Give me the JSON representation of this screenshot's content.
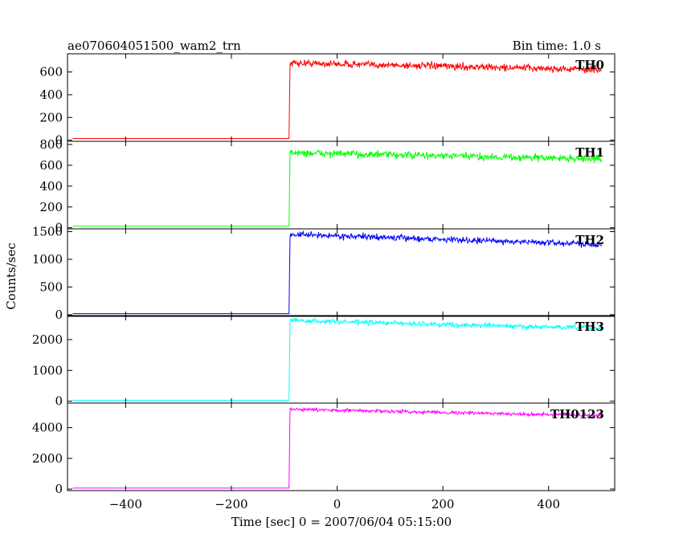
{
  "header": {
    "title_left": "ae070604051500_wam2_trn",
    "title_right": "Bin time: 1.0 s"
  },
  "chart_data": {
    "type": "line",
    "title": "ae070604051500_wam2_trn",
    "subtitle": "Bin time: 1.0 s",
    "xlabel": "Time [sec] 0 = 2007/06/04 05:15:00",
    "ylabel": "Counts/sec",
    "xlim": [
      -510,
      525
    ],
    "xticks": [
      -400,
      -200,
      0,
      200,
      400
    ],
    "grid": false,
    "step_time": -90,
    "x_start": -500,
    "x_end": 500,
    "panels": [
      {
        "name": "TH0",
        "color": "#ff0000",
        "ylim": [
          -10,
          760
        ],
        "yticks": [
          0,
          200,
          400,
          600
        ],
        "pre_level": 15,
        "post_start": 680,
        "post_end": 620,
        "noise": 22
      },
      {
        "name": "TH1",
        "color": "#00ff00",
        "ylim": [
          -10,
          830
        ],
        "yticks": [
          0,
          200,
          400,
          600,
          800
        ],
        "pre_level": 15,
        "post_start": 720,
        "post_end": 660,
        "noise": 25
      },
      {
        "name": "TH2",
        "color": "#0000ff",
        "ylim": [
          -30,
          1550
        ],
        "yticks": [
          0,
          500,
          1000,
          1500
        ],
        "pre_level": 20,
        "post_start": 1450,
        "post_end": 1270,
        "noise": 38
      },
      {
        "name": "TH3",
        "color": "#00ffff",
        "ylim": [
          -60,
          2780
        ],
        "yticks": [
          0,
          1000,
          2000
        ],
        "pre_level": 30,
        "post_start": 2620,
        "post_end": 2360,
        "noise": 55
      },
      {
        "name": "TH0123",
        "color": "#ff00ff",
        "ylim": [
          -100,
          5600
        ],
        "yticks": [
          0,
          2000,
          4000
        ],
        "pre_level": 60,
        "post_start": 5200,
        "post_end": 4780,
        "noise": 75
      }
    ]
  }
}
